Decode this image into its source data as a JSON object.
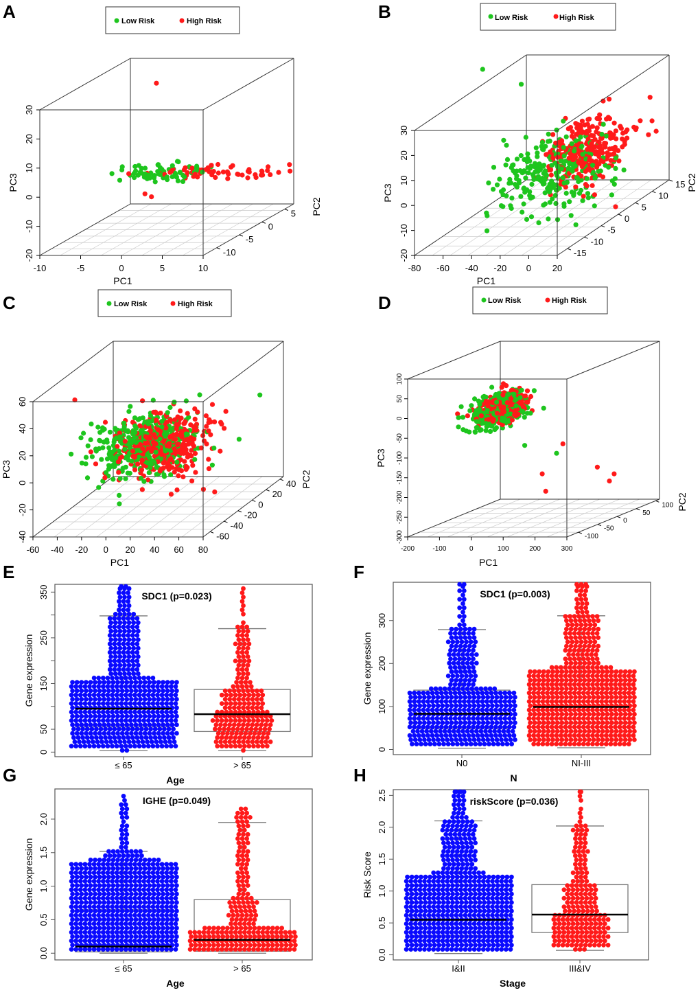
{
  "panel_labels": [
    "A",
    "B",
    "C",
    "D",
    "E",
    "F",
    "G",
    "H"
  ],
  "legend": {
    "low": "Low Risk",
    "high": "High Risk"
  },
  "colors": {
    "low_risk": "#1ec51e",
    "high_risk": "#ff1a1a",
    "group_blue": "#0a0aff",
    "group_red": "#ff1a1a"
  },
  "chart_data": [
    {
      "id": "A",
      "type": "scatter",
      "subtype": "3d-pca",
      "xlabel": "PC1",
      "ylabel": "PC2",
      "zlabel": "PC3",
      "xlim": [
        -10,
        10
      ],
      "ylim": [
        -13,
        7
      ],
      "zlim": [
        -20,
        30
      ],
      "x_ticks": [
        "-10",
        "-5",
        "0",
        "5",
        "10"
      ],
      "x_tick_values": [
        -10,
        -5,
        0,
        5,
        10
      ],
      "y_ticks": [
        "-10",
        "-5",
        "0",
        "5"
      ],
      "y_tick_values": [
        -10,
        -5,
        0,
        5
      ],
      "z_ticks": [
        "-20",
        "-10",
        "0",
        "10",
        "20",
        "30"
      ],
      "z_tick_values": [
        -20,
        -10,
        0,
        10,
        20,
        30
      ],
      "clusters": [
        {
          "group": "low",
          "center": [
            -4,
            3,
            -6
          ],
          "spread": [
            2.5,
            1,
            1.2
          ],
          "n": 70
        },
        {
          "group": "high",
          "center": [
            3,
            3,
            -5.5
          ],
          "spread": [
            4,
            1,
            0.8
          ],
          "n": 60
        }
      ],
      "outliers": [
        {
          "group": "high",
          "point": [
            -4.6,
            3,
            25
          ]
        },
        {
          "group": "high",
          "point": [
            -6,
            3,
            -13
          ]
        },
        {
          "group": "high",
          "point": [
            -5.2,
            3,
            -14
          ]
        },
        {
          "group": "high",
          "point": [
            9,
            3,
            -5
          ]
        }
      ]
    },
    {
      "id": "B",
      "type": "scatter",
      "subtype": "3d-pca",
      "xlabel": "PC1",
      "ylabel": "PC2",
      "zlabel": "PC3",
      "xlim": [
        -80,
        20
      ],
      "ylim": [
        -18,
        15
      ],
      "zlim": [
        -20,
        30
      ],
      "x_ticks": [
        "-80",
        "-60",
        "-40",
        "-20",
        "0",
        "20"
      ],
      "x_tick_values": [
        -80,
        -60,
        -40,
        -20,
        0,
        20
      ],
      "y_ticks": [
        "-15",
        "-10",
        "-5",
        "0",
        "5",
        "10",
        "15"
      ],
      "y_tick_values": [
        -15,
        -10,
        -5,
        0,
        5,
        10,
        15
      ],
      "z_ticks": [
        "-20",
        "-10",
        "0",
        "10",
        "20",
        "30"
      ],
      "z_tick_values": [
        -20,
        -10,
        0,
        10,
        20,
        30
      ],
      "clusters": [
        {
          "group": "low",
          "center": [
            -25,
            0,
            -3
          ],
          "spread": [
            18,
            5,
            7
          ],
          "n": 260
        },
        {
          "group": "high",
          "center": [
            -10,
            3,
            2
          ],
          "spread": [
            11,
            5,
            6
          ],
          "n": 260
        }
      ],
      "outliers": [
        {
          "group": "low",
          "point": [
            -75,
            0,
            38
          ]
        },
        {
          "group": "low",
          "point": [
            -48,
            0,
            32
          ]
        },
        {
          "group": "low",
          "point": [
            -60,
            -5,
            -16
          ]
        }
      ]
    },
    {
      "id": "C",
      "type": "scatter",
      "subtype": "3d-pca",
      "xlabel": "PC1",
      "ylabel": "PC2",
      "zlabel": "PC3",
      "xlim": [
        -60,
        80
      ],
      "ylim": [
        -70,
        45
      ],
      "zlim": [
        -40,
        60
      ],
      "x_ticks": [
        "-60",
        "-40",
        "-20",
        "0",
        "20",
        "40",
        "60",
        "80"
      ],
      "x_tick_values": [
        -60,
        -40,
        -20,
        0,
        20,
        40,
        60,
        80
      ],
      "y_ticks": [
        "-60",
        "-40",
        "-20",
        "0",
        "20",
        "40"
      ],
      "y_tick_values": [
        -60,
        -40,
        -20,
        0,
        20,
        40
      ],
      "z_ticks": [
        "-40",
        "-20",
        "0",
        "20",
        "40",
        "60"
      ],
      "z_tick_values": [
        -40,
        -20,
        0,
        20,
        40,
        60
      ],
      "clusters": [
        {
          "group": "low",
          "center": [
            -10,
            0,
            0
          ],
          "spread": [
            20,
            15,
            11
          ],
          "n": 380
        },
        {
          "group": "high",
          "center": [
            6,
            0,
            0
          ],
          "spread": [
            18,
            15,
            11
          ],
          "n": 380
        }
      ],
      "outliers": [
        {
          "group": "high",
          "point": [
            -60,
            -10,
            38
          ]
        },
        {
          "group": "high",
          "point": [
            40,
            0,
            -32
          ]
        },
        {
          "group": "high",
          "point": [
            55,
            -10,
            -30
          ]
        },
        {
          "group": "low",
          "point": [
            75,
            20,
            30
          ]
        }
      ]
    },
    {
      "id": "D",
      "type": "scatter",
      "subtype": "3d-pca",
      "xlabel": "PC1",
      "ylabel": "PC2",
      "zlabel": "PC3",
      "xlim": [
        -200,
        300
      ],
      "ylim": [
        -130,
        110
      ],
      "zlim": [
        -300,
        100
      ],
      "x_ticks": [
        "-200",
        "-100",
        "0",
        "100",
        "200",
        "300"
      ],
      "x_tick_values": [
        -200,
        -100,
        0,
        100,
        200,
        300
      ],
      "y_ticks": [
        "-100",
        "-50",
        "0",
        "50",
        "100"
      ],
      "y_tick_values": [
        -100,
        -50,
        0,
        50,
        100
      ],
      "z_ticks": [
        "-300",
        "-250",
        "-200",
        "-150",
        "-100",
        "-50",
        "0",
        "50",
        "100"
      ],
      "z_tick_values": [
        -300,
        -250,
        -200,
        -150,
        -100,
        -50,
        0,
        50,
        100
      ],
      "clusters": [
        {
          "group": "low",
          "center": [
            -70,
            0,
            -30
          ],
          "spread": [
            30,
            25,
            20
          ],
          "n": 300
        },
        {
          "group": "high",
          "center": [
            -60,
            0,
            -25
          ],
          "spread": [
            24,
            22,
            16
          ],
          "n": 300
        }
      ],
      "outliers": [
        {
          "group": "low",
          "point": [
            110,
            0,
            -140
          ]
        },
        {
          "group": "low",
          "point": [
            10,
            0,
            -120
          ]
        },
        {
          "group": "high",
          "point": [
            130,
            0,
            -116
          ]
        },
        {
          "group": "high",
          "point": [
            65,
            0,
            -192
          ]
        },
        {
          "group": "high",
          "point": [
            76,
            0,
            -236
          ]
        },
        {
          "group": "high",
          "point": [
            238,
            0,
            -175
          ]
        },
        {
          "group": "high",
          "point": [
            291,
            0,
            -192
          ]
        },
        {
          "group": "high",
          "point": [
            276,
            0,
            -210
          ]
        }
      ]
    },
    {
      "id": "E",
      "type": "box-beeswarm",
      "title": "SDC1 (p=0.023)",
      "xlabel": "Age",
      "ylabel": "Gene expression",
      "ylim": [
        -10,
        367
      ],
      "y_tick_values": [
        0,
        50,
        100,
        150,
        200,
        250,
        300,
        350
      ],
      "y_tick_labels": [
        "0",
        "50",
        "",
        "150",
        "",
        "250",
        "",
        "350"
      ],
      "groups": [
        {
          "label": "≤ 65",
          "color": "blue",
          "n": 520,
          "min": 3,
          "q1": 55,
          "median": 95,
          "q3": 153,
          "whisker_high": 298,
          "max": 365
        },
        {
          "label": "> 65",
          "color": "red",
          "n": 220,
          "min": 3,
          "q1": 45,
          "median": 83,
          "q3": 137,
          "whisker_high": 270,
          "max": 358
        }
      ]
    },
    {
      "id": "F",
      "type": "box-beeswarm",
      "title": "SDC1 (p=0.003)",
      "xlabel": "N",
      "ylabel": "Gene expression",
      "ylim": [
        -12,
        389
      ],
      "y_tick_values": [
        0,
        100,
        200,
        300
      ],
      "y_tick_labels": [
        "0",
        "100",
        "200",
        "300"
      ],
      "groups": [
        {
          "label": "N0",
          "color": "blue",
          "n": 430,
          "min": 3,
          "q1": 48,
          "median": 83,
          "q3": 138,
          "whisker_high": 279,
          "max": 390
        },
        {
          "label": "NI-III",
          "color": "red",
          "n": 560,
          "min": 4,
          "q1": 60,
          "median": 99,
          "q3": 160,
          "whisker_high": 311,
          "max": 390
        }
      ]
    },
    {
      "id": "G",
      "type": "box-beeswarm",
      "title": "IGHE (p=0.049)",
      "xlabel": "Age",
      "ylabel": "Gene expression",
      "ylim": [
        -0.1,
        2.45
      ],
      "y_tick_values": [
        0,
        0.5,
        1,
        1.5,
        2
      ],
      "y_tick_labels": [
        "0.0",
        "0.5",
        "1.0",
        "1.5",
        "2.0"
      ],
      "groups": [
        {
          "label": "≤ 65",
          "color": "blue",
          "n": 560,
          "min": 0,
          "q1": 0.02,
          "median": 0.1,
          "q3": 0.65,
          "whisker_high": 1.52,
          "max": 2.3
        },
        {
          "label": "> 65",
          "color": "red",
          "n": 240,
          "min": 0,
          "q1": 0.03,
          "median": 0.2,
          "q3": 0.8,
          "whisker_high": 1.95,
          "max": 2.12
        }
      ]
    },
    {
      "id": "H",
      "type": "box-beeswarm",
      "title": "riskScore (p=0.036)",
      "xlabel": "Stage",
      "ylabel": "Risk Score",
      "ylim": [
        -0.08,
        2.59
      ],
      "y_tick_values": [
        0,
        0.5,
        1,
        1.5,
        2,
        2.5
      ],
      "y_tick_labels": [
        "0.0",
        "0.5",
        "1.0",
        "1.5",
        "2.0",
        "2.5"
      ],
      "groups": [
        {
          "label": "I&II",
          "color": "blue",
          "n": 560,
          "min": 0.02,
          "q1": 0.3,
          "median": 0.55,
          "q3": 1.08,
          "whisker_high": 2.1,
          "max": 2.6
        },
        {
          "label": "III&IV",
          "color": "red",
          "n": 210,
          "min": 0.07,
          "q1": 0.35,
          "median": 0.63,
          "q3": 1.1,
          "whisker_high": 2.02,
          "max": 2.6
        }
      ]
    }
  ]
}
